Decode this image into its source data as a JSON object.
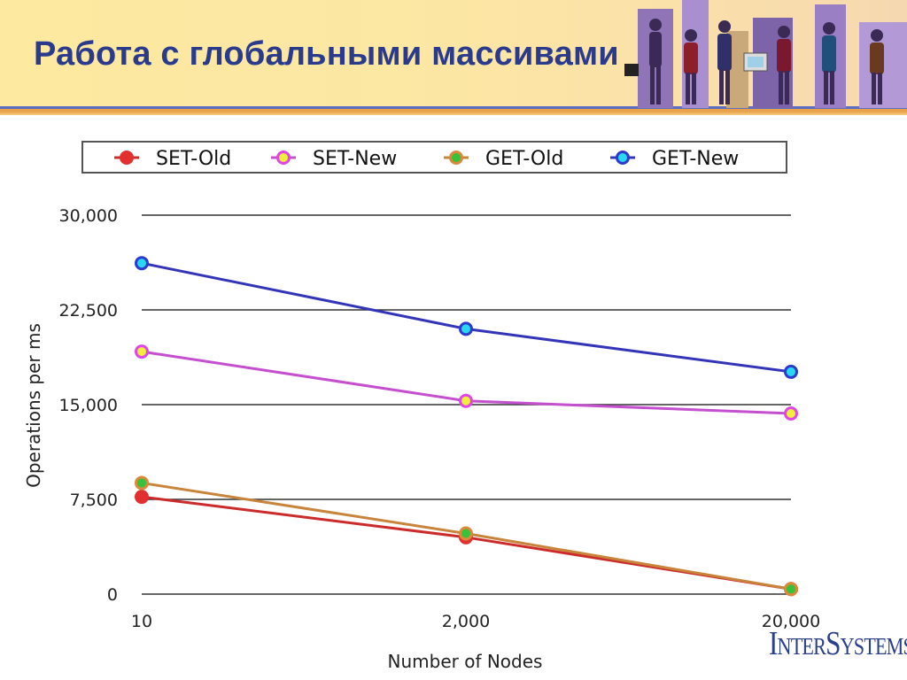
{
  "slide": {
    "title": "Работа с глобальными массивами",
    "logo_text": "InterSystems"
  },
  "colors": {
    "title": "#2a3a8c",
    "header_bg": "#fde9a0",
    "logo": "#2b3f8f"
  },
  "chart_data": {
    "type": "line",
    "categories": [
      "10",
      "2,000",
      "20,000"
    ],
    "xlabel": "Number of Nodes",
    "ylabel": "Operations per ms",
    "ylim": [
      0,
      30000
    ],
    "yticks": [
      {
        "value": 0,
        "label": "0"
      },
      {
        "value": 7500,
        "label": "7,500"
      },
      {
        "value": 15000,
        "label": "15,000"
      },
      {
        "value": 22500,
        "label": "22,500"
      },
      {
        "value": 30000,
        "label": "30,000"
      }
    ],
    "grid": "horizontal",
    "legend_position": "top",
    "series": [
      {
        "name": "SET-Old",
        "line_color": "#cc2b2b",
        "marker_ring": "#e23030",
        "marker_fill": "#e23030",
        "values": [
          7700,
          4500,
          400
        ]
      },
      {
        "name": "SET-New",
        "line_color": "#c44fcf",
        "marker_ring": "#e046e6",
        "marker_fill": "#f2ef3c",
        "values": [
          19200,
          15300,
          14300
        ]
      },
      {
        "name": "GET-Old",
        "line_color": "#c8843a",
        "marker_ring": "#d98a3a",
        "marker_fill": "#36c23a",
        "values": [
          8800,
          4800,
          400
        ]
      },
      {
        "name": "GET-New",
        "line_color": "#3434b8",
        "marker_ring": "#2d3ad0",
        "marker_fill": "#29d8f0",
        "values": [
          26200,
          21000,
          17600
        ]
      }
    ]
  }
}
